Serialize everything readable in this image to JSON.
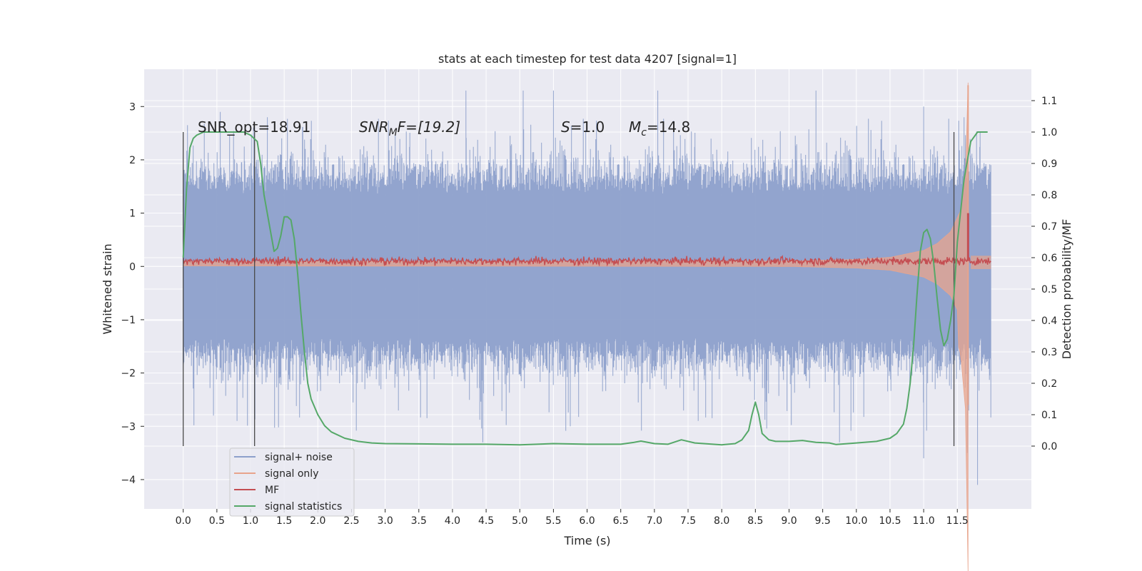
{
  "chart_data": {
    "type": "line",
    "title": "stats at each timestep for test data 4207 [signal=1]",
    "xlabel": "Time (s)",
    "ylabel": "Whitened strain",
    "y2label": "Detection probability/MF",
    "xlim": [
      -0.58,
      12.6
    ],
    "ylim": [
      -4.55,
      3.7
    ],
    "y2lim": [
      -0.2,
      1.2
    ],
    "x_ticks": [
      "0.0",
      "0.5",
      "1.0",
      "1.5",
      "2.0",
      "2.5",
      "3.0",
      "3.5",
      "4.0",
      "4.5",
      "5.0",
      "5.5",
      "6.0",
      "6.5",
      "7.0",
      "7.5",
      "8.0",
      "8.5",
      "9.0",
      "9.5",
      "10.0",
      "10.5",
      "11.0",
      "11.5"
    ],
    "y_ticks": [
      "3",
      "2",
      "1",
      "0",
      "−1",
      "−2",
      "−3",
      "−4"
    ],
    "y2_ticks": [
      "1.1",
      "1.0",
      "0.9",
      "0.8",
      "0.7",
      "0.6",
      "0.5",
      "0.4",
      "0.3",
      "0.2",
      "0.1",
      "0.0"
    ],
    "grid": true,
    "legend_position": "lower-left",
    "colors": {
      "signal_noise": "#8da0cb",
      "signal_only": "#e8a48c",
      "mf": "#c44e52",
      "signal_statistics": "#55a868",
      "vlines": "#4a4a4a",
      "plot_bg": "#eaeaf2",
      "grid": "#ffffff"
    },
    "annotations": {
      "snr_opt": "SNR_opt=18.91",
      "snr_mf": "SNRMF=[19.2]",
      "snr_mf_base": "SNR",
      "snr_mf_sub": "M",
      "snr_mf_tail": "F=[19.2]",
      "s_val": "S=1.0",
      "s_var": "S",
      "s_tail": "=1.0",
      "mc": "Mc=14.8",
      "mc_base": "M",
      "mc_sub": "c",
      "mc_tail": "=14.8"
    },
    "vertical_lines": [
      0.0,
      1.06,
      11.45
    ],
    "series": [
      {
        "name": "signal+ noise",
        "envelope": {
          "x_range": [
            0.0,
            12.0
          ],
          "upper_typical": 1.8,
          "lower_typical": -1.8,
          "max_spike": 3.3,
          "min_spike": -4.1
        }
      },
      {
        "name": "signal only",
        "envelope": {
          "x": [
            0.0,
            9.0,
            10.0,
            10.5,
            11.0,
            11.2,
            11.4,
            11.55,
            11.62,
            11.66,
            11.7,
            12.0
          ],
          "amp": [
            0.04,
            0.05,
            0.08,
            0.12,
            0.25,
            0.38,
            0.6,
            1.0,
            1.6,
            3.4,
            0.15,
            0.12
          ]
        }
      },
      {
        "name": "MF",
        "x_range": [
          0.0,
          12.0
        ],
        "baseline": 0.1,
        "spike": {
          "x": 11.66,
          "y": 1.0
        }
      },
      {
        "name": "signal statistics",
        "x": [
          0.0,
          0.05,
          0.1,
          0.15,
          0.2,
          0.3,
          0.5,
          0.7,
          0.9,
          1.0,
          1.1,
          1.15,
          1.2,
          1.3,
          1.35,
          1.4,
          1.45,
          1.5,
          1.55,
          1.6,
          1.65,
          1.7,
          1.75,
          1.8,
          1.85,
          1.9,
          2.0,
          2.1,
          2.2,
          2.4,
          2.6,
          2.8,
          3.0,
          3.5,
          4.0,
          4.5,
          5.0,
          5.5,
          6.0,
          6.5,
          6.7,
          6.8,
          7.0,
          7.2,
          7.4,
          7.6,
          8.0,
          8.2,
          8.3,
          8.4,
          8.45,
          8.5,
          8.55,
          8.6,
          8.7,
          8.8,
          9.0,
          9.2,
          9.4,
          9.6,
          9.7,
          10.0,
          10.3,
          10.5,
          10.6,
          10.7,
          10.75,
          10.8,
          10.85,
          10.9,
          10.95,
          11.0,
          11.05,
          11.1,
          11.15,
          11.2,
          11.25,
          11.3,
          11.35,
          11.4,
          11.45,
          11.5,
          11.6,
          11.7,
          11.8,
          11.9,
          11.95
        ],
        "y": [
          0.6,
          0.82,
          0.95,
          0.98,
          0.99,
          1.0,
          1.0,
          1.0,
          1.0,
          0.99,
          0.97,
          0.9,
          0.8,
          0.68,
          0.62,
          0.63,
          0.67,
          0.73,
          0.73,
          0.72,
          0.66,
          0.55,
          0.42,
          0.3,
          0.2,
          0.15,
          0.1,
          0.065,
          0.045,
          0.025,
          0.015,
          0.01,
          0.008,
          0.007,
          0.006,
          0.006,
          0.004,
          0.008,
          0.006,
          0.006,
          0.012,
          0.016,
          0.008,
          0.006,
          0.02,
          0.01,
          0.004,
          0.008,
          0.02,
          0.05,
          0.1,
          0.14,
          0.1,
          0.04,
          0.02,
          0.015,
          0.015,
          0.018,
          0.012,
          0.01,
          0.005,
          0.01,
          0.015,
          0.025,
          0.04,
          0.07,
          0.12,
          0.2,
          0.32,
          0.48,
          0.62,
          0.68,
          0.69,
          0.66,
          0.58,
          0.47,
          0.37,
          0.32,
          0.34,
          0.4,
          0.48,
          0.65,
          0.85,
          0.97,
          1.0,
          1.0,
          1.0
        ]
      }
    ]
  }
}
